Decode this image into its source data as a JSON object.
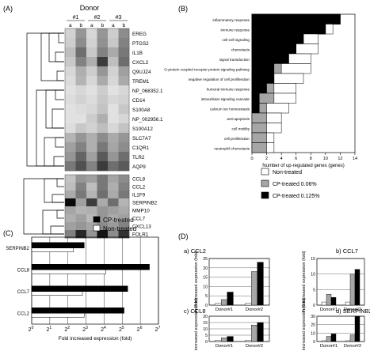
{
  "panel_labels": {
    "a": "(A)",
    "b": "(B)",
    "c": "(C)",
    "d": "(D)"
  },
  "panel_a": {
    "title": "Donor",
    "donor_labels": [
      "#1",
      "#2",
      "#3"
    ],
    "column_labels": [
      "a",
      "b",
      "a",
      "b",
      "a",
      "b"
    ],
    "cluster1_genes": [
      "EREG",
      "PTGS2",
      "IL1B",
      "CXCL2",
      "Q9UJZ4",
      "TREM1",
      "NP_068352.1",
      "CD14",
      "S100A8",
      "NP_002956.1",
      "S100A12",
      "SLC7A7",
      "C1QR1",
      "TLR2",
      "AQP9"
    ],
    "cluster1_grey": [
      [
        210,
        150,
        215,
        150,
        205,
        140
      ],
      [
        205,
        140,
        210,
        145,
        200,
        130
      ],
      [
        190,
        110,
        200,
        130,
        170,
        120
      ],
      [
        200,
        130,
        175,
        60,
        190,
        110
      ],
      [
        215,
        175,
        205,
        150,
        210,
        160
      ],
      [
        220,
        180,
        215,
        170,
        215,
        170
      ],
      [
        225,
        215,
        225,
        205,
        225,
        215
      ],
      [
        220,
        210,
        220,
        200,
        215,
        210
      ],
      [
        225,
        220,
        215,
        195,
        225,
        200
      ],
      [
        225,
        225,
        205,
        175,
        225,
        215
      ],
      [
        220,
        200,
        210,
        190,
        215,
        195
      ],
      [
        180,
        150,
        175,
        140,
        170,
        150
      ],
      [
        160,
        130,
        175,
        120,
        165,
        140
      ],
      [
        150,
        100,
        160,
        90,
        150,
        110
      ],
      [
        120,
        80,
        130,
        60,
        110,
        90
      ]
    ],
    "cluster2_genes": [
      "CCL8",
      "CCL2",
      "IL1F9",
      "SERPINB2",
      "MMP10",
      "CCL7",
      "CXCL13",
      "FOLR1"
    ],
    "cluster2_grey": [
      [
        195,
        150,
        160,
        120,
        165,
        140
      ],
      [
        190,
        130,
        190,
        120,
        175,
        130
      ],
      [
        170,
        120,
        180,
        110,
        170,
        120
      ],
      [
        10,
        160,
        60,
        170,
        110,
        180
      ],
      [
        165,
        180,
        175,
        150,
        160,
        170
      ],
      [
        175,
        160,
        185,
        150,
        170,
        160
      ],
      [
        160,
        150,
        165,
        140,
        155,
        130
      ],
      [
        130,
        40,
        150,
        20,
        140,
        50
      ]
    ]
  },
  "chart_data": [
    {
      "type": "bar",
      "panel": "B",
      "orientation": "horizontal",
      "categories": [
        "inflammatory response",
        "immune response",
        "cell-cell signaling",
        "chemotaxis",
        "signal transduction",
        "G-protein coupled receptor protein signaling pathway",
        "negative regulation of cell proliferation",
        "humoral immune response",
        "intracellular signaling cascade",
        "calcium ion homeostasis",
        "anti-apoptosis",
        "cell motility",
        "cell proliferation",
        "neutrophil chemotaxis"
      ],
      "series": [
        {
          "name": "CP-treated 0.125%",
          "values": [
            12,
            10,
            7,
            6,
            5,
            3,
            3,
            2,
            1,
            1,
            0,
            0,
            0,
            0
          ]
        },
        {
          "name": "CP-treated 0.06%",
          "values": [
            12,
            10,
            7,
            6,
            5,
            4,
            3,
            3,
            3,
            2,
            2,
            2,
            2,
            2
          ]
        },
        {
          "name": "Non-treated",
          "values": [
            12,
            11,
            9,
            9,
            8,
            8,
            7,
            6,
            6,
            5,
            4,
            4,
            3,
            3
          ]
        }
      ],
      "xlabel": "Number of up-regulated genes (genes)",
      "xlim": [
        0,
        14
      ],
      "xticks": [
        "0",
        "2",
        "4",
        "6",
        "8",
        "10",
        "12",
        "14"
      ],
      "legend": [
        "Non-treated",
        "CP-treated 0.06%",
        "CP-treated 0.125%"
      ]
    },
    {
      "type": "bar",
      "panel": "C",
      "orientation": "horizontal",
      "categories": [
        "SERPINB2",
        "CCL8",
        "CCL7",
        "CCL2"
      ],
      "series": [
        {
          "name": "CP-treated",
          "values": [
            2.9,
            6.5,
            5.3,
            5.1
          ]
        },
        {
          "name": "Non-treated",
          "values": [
            2.3,
            4.1,
            2.8,
            2.9
          ]
        }
      ],
      "xlabel": "Fold increased expression (fold)",
      "xscale": "log2",
      "xlim": [
        0,
        7
      ],
      "xticks_base": "2",
      "xticks_exp": [
        "0",
        "1",
        "2",
        "3",
        "4",
        "5",
        "6",
        "7"
      ]
    },
    {
      "type": "bar",
      "panel": "D",
      "subplots": [
        {
          "title": "a) CCL2",
          "ylabel": "Fold increased expression (fold)",
          "ylim": [
            0,
            25
          ],
          "yticks": [
            "0",
            "5",
            "10",
            "15",
            "20",
            "25"
          ],
          "categories": [
            "Donor#1",
            "Donor#2"
          ],
          "series": [
            {
              "name": "Non-treated",
              "values": [
                1,
                1
              ]
            },
            {
              "name": "CP-treated 0.06%",
              "values": [
                3,
                18
              ]
            },
            {
              "name": "CP-treated 0.125%",
              "values": [
                7,
                23
              ]
            }
          ]
        },
        {
          "title": "b) CCL7",
          "ylabel": "Fold increased expression (fold)",
          "ylim": [
            0,
            15
          ],
          "yticks": [
            "0",
            "5",
            "10",
            "15"
          ],
          "categories": [
            "Donor#1",
            "Donor#2"
          ],
          "series": [
            {
              "name": "Non-treated",
              "values": [
                1,
                1
              ]
            },
            {
              "name": "CP-treated 0.06%",
              "values": [
                3.5,
                10
              ]
            },
            {
              "name": "CP-treated 0.125%",
              "values": [
                2.5,
                11.5
              ]
            }
          ]
        },
        {
          "title": "c) CCL8",
          "ylabel": "Fold increased expression (fold)",
          "ylim": [
            0,
            20
          ],
          "yticks": [
            "0",
            "5",
            "10",
            "15",
            "20"
          ],
          "categories": [
            "Donor#1",
            "Donor#2"
          ],
          "series": [
            {
              "name": "Non-treated",
              "values": [
                1,
                1
              ]
            },
            {
              "name": "CP-treated 0.06%",
              "values": [
                3,
                13
              ]
            },
            {
              "name": "CP-treated 0.125%",
              "values": [
                4,
                15
              ]
            }
          ]
        },
        {
          "title": "d) SERPINB2",
          "ylabel": "Fold increased expression (fold)",
          "ylim": [
            0,
            30
          ],
          "yticks": [
            "0",
            "10",
            "20",
            "30"
          ],
          "categories": [
            "Donor#1",
            "Donor#2"
          ],
          "series": [
            {
              "name": "Non-treated",
              "values": [
                1,
                1
              ]
            },
            {
              "name": "CP-treated 0.06%",
              "values": [
                6,
                8
              ]
            },
            {
              "name": "CP-treated 0.125%",
              "values": [
                9,
                30
              ]
            }
          ]
        }
      ],
      "legend": [
        "Non-treated",
        "CP-treated 0.06%",
        "CP-treated 0.125%"
      ]
    }
  ],
  "colors": {
    "non_treated": "#ffffff",
    "cp_006": "#a6a6a6",
    "cp_0125": "#000000",
    "edge": "#000000"
  }
}
